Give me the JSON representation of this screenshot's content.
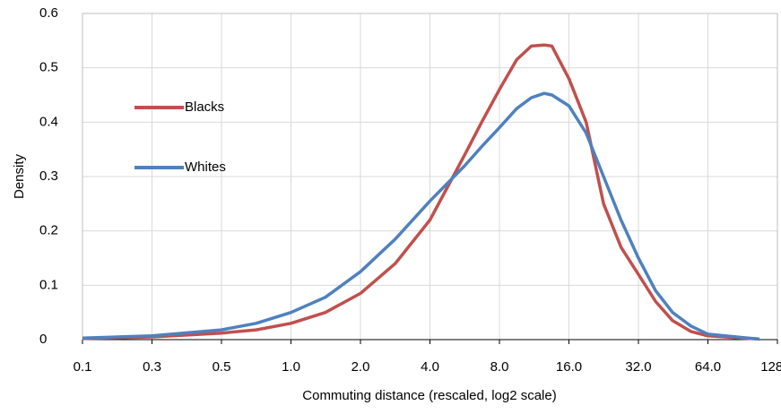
{
  "chart_data": {
    "type": "line",
    "x_label": "Commuting distance (rescaled, log2 scale)",
    "y_label": "Density",
    "log_x": true,
    "log_base": 2,
    "grid": true,
    "legend": "left",
    "xlim": [
      0.125,
      128
    ],
    "ylim": [
      0,
      0.6
    ],
    "xticks": [
      {
        "value": 0.125,
        "label": "0.1"
      },
      {
        "value": 0.25,
        "label": "0.3"
      },
      {
        "value": 0.5,
        "label": "0.5"
      },
      {
        "value": 1,
        "label": "1.0"
      },
      {
        "value": 2,
        "label": "2.0"
      },
      {
        "value": 4,
        "label": "4.0"
      },
      {
        "value": 8,
        "label": "8.0"
      },
      {
        "value": 16,
        "label": "16.0"
      },
      {
        "value": 32,
        "label": "32.0"
      },
      {
        "value": 64,
        "label": "64.0"
      },
      {
        "value": 128,
        "label": "128.0"
      }
    ],
    "yticks": [
      0,
      0.1,
      0.2,
      0.3,
      0.4,
      0.5,
      0.6
    ],
    "x": [
      0.125,
      0.25,
      0.5,
      0.707,
      1,
      1.41,
      2,
      2.83,
      4,
      5.66,
      6.7,
      8,
      9.5,
      11,
      12.5,
      13.5,
      16,
      19,
      22.6,
      26.9,
      32,
      38,
      45,
      54,
      64,
      90,
      107
    ],
    "series": [
      {
        "name": "Blacks",
        "color": "#c0504d",
        "values": [
          0.002,
          0.005,
          0.012,
          0.018,
          0.03,
          0.05,
          0.085,
          0.14,
          0.22,
          0.34,
          0.4,
          0.46,
          0.515,
          0.54,
          0.542,
          0.54,
          0.48,
          0.4,
          0.25,
          0.17,
          0.12,
          0.07,
          0.035,
          0.015,
          0.007,
          0.003,
          0.001
        ]
      },
      {
        "name": "Whites",
        "color": "#4f81bd",
        "values": [
          0.003,
          0.007,
          0.018,
          0.03,
          0.05,
          0.078,
          0.125,
          0.185,
          0.255,
          0.32,
          0.355,
          0.39,
          0.425,
          0.445,
          0.453,
          0.45,
          0.43,
          0.38,
          0.3,
          0.22,
          0.15,
          0.09,
          0.05,
          0.025,
          0.01,
          0.004,
          0.001
        ]
      }
    ]
  }
}
